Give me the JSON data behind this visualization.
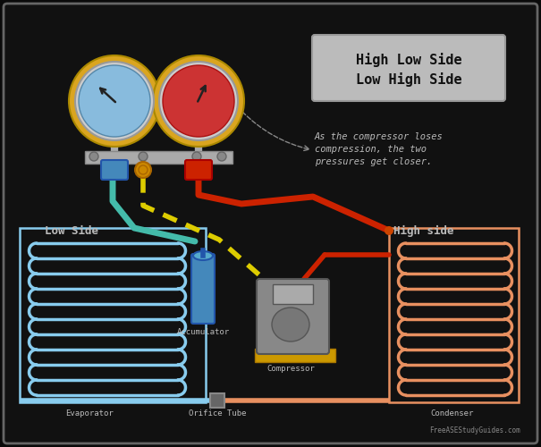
{
  "bg_color": "#0a0a0a",
  "border_color": "#666666",
  "title_box_color": "#bbbbbb",
  "title_text": "High Low Side\nLow High Side",
  "title_fontsize": 11,
  "annotation_text": "As the compressor loses\ncompression, the two\npressures get closer.",
  "annotation_fontsize": 7.5,
  "watermark": "FreeASEStudyGuides.com",
  "low_side_label": "Low Side",
  "high_side_label": "High side",
  "evaporator_label": "Evaporator",
  "accumulator_label": "Accumulator",
  "compressor_label": "Compressor",
  "orifice_label": "Orifice Tube",
  "condenser_label": "Condenser",
  "coil_blue": "#88CCEE",
  "coil_orange": "#E89060",
  "pipe_red": "#CC2200",
  "pipe_teal": "#44BBAA",
  "pipe_yellow": "#DDCC00",
  "gauge_ring": "#DAA520",
  "gauge_left_face": "#88BBDD",
  "gauge_right_face": "#CC3333",
  "accumulator_color": "#4488BB",
  "text_color": "#bbbbbb",
  "label_color": "#bbbbbb",
  "low_box_color": "#88CCEE",
  "high_box_color": "#E89060"
}
